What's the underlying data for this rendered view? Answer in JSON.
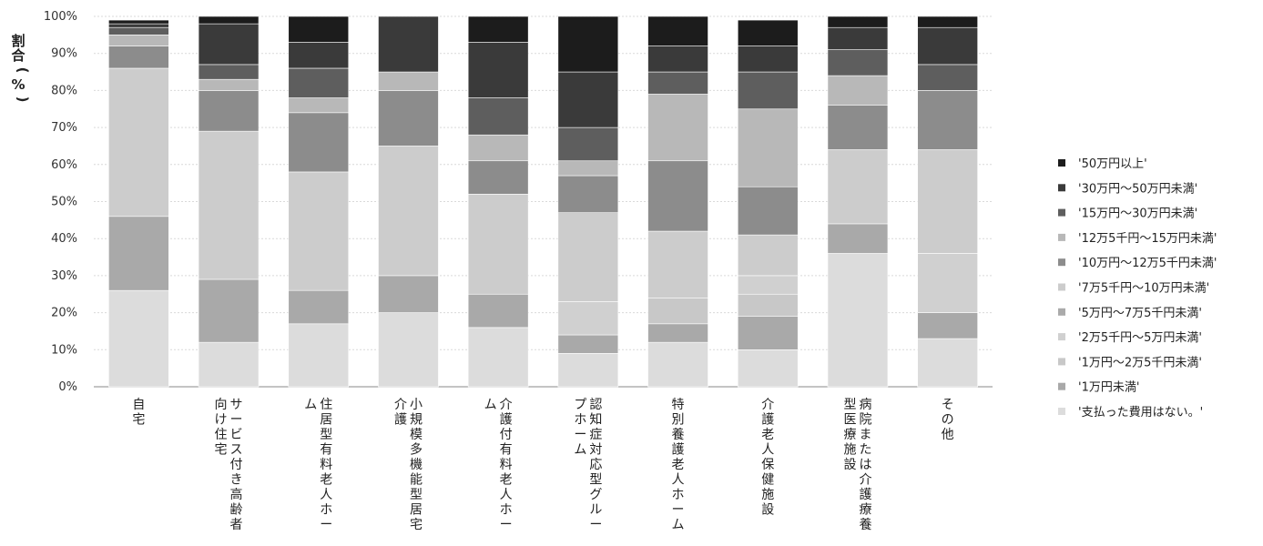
{
  "chart_data": {
    "type": "bar",
    "stacked": true,
    "title": "",
    "xlabel": "",
    "ylabel": "割合(%)",
    "ylim": [
      0,
      100
    ],
    "yticks": [
      "0%",
      "10%",
      "20%",
      "30%",
      "40%",
      "50%",
      "60%",
      "70%",
      "80%",
      "90%",
      "100%"
    ],
    "grid": true,
    "legend_position": "right",
    "categories": [
      "自宅",
      "サービス付き高齢者向け住宅",
      "住居型有料老人ホーム",
      "小規模多機能型居宅介護",
      "介護付有料老人ホーム",
      "認知症対応型グループホーム",
      "特別養護老人ホーム",
      "介護老人保健施設",
      "病院または介護療養型医療施設",
      "その他"
    ],
    "category_lines": [
      [
        "自宅"
      ],
      [
        "サービス付き高齢者",
        "向け住宅"
      ],
      [
        "住居型有料老人ホー",
        "ム"
      ],
      [
        "小規模多機能型居宅",
        "介護"
      ],
      [
        "介護付有料老人ホー",
        "ム"
      ],
      [
        "認知症対応型グルー",
        "プホーム"
      ],
      [
        "特別養護老人ホーム"
      ],
      [
        "介護老人保健施設"
      ],
      [
        "病院または介護療養",
        "型医療施設"
      ],
      [
        "その他"
      ]
    ],
    "series": [
      {
        "name": "'支払った費用はない。'",
        "color": "#dcdcdc",
        "values": [
          26,
          12,
          17,
          20,
          16,
          9,
          12,
          10,
          36,
          13
        ]
      },
      {
        "name": "'1万円未満'",
        "color": "#a9a9a9",
        "values": [
          20,
          17,
          9,
          10,
          9,
          5,
          5,
          9,
          8,
          7
        ]
      },
      {
        "name": "'1万円～2万5千円未満'",
        "color": "#c8c8c8",
        "values": [
          0,
          0,
          0,
          0,
          0,
          0,
          7,
          6,
          0,
          0
        ]
      },
      {
        "name": "'2万5千円～5万円未満'",
        "color": "#d0d0d0",
        "values": [
          0,
          0,
          0,
          0,
          0,
          9,
          0,
          5,
          0,
          16
        ]
      },
      {
        "name": "'5万円～7万5千円未満'",
        "color": "#aaaaaa",
        "values": [
          0,
          0,
          0,
          0,
          0,
          0,
          0,
          0,
          0,
          0
        ]
      },
      {
        "name": "'7万5千円～10万円未満'",
        "color": "#cccccc",
        "values": [
          40,
          40,
          32,
          35,
          27,
          24,
          18,
          11,
          20,
          28
        ]
      },
      {
        "name": "'10万円～12万5千円未満'",
        "color": "#8c8c8c",
        "values": [
          6,
          11,
          16,
          15,
          9,
          10,
          19,
          13,
          12,
          16
        ]
      },
      {
        "name": "'12万5千円～15万円未満'",
        "color": "#b8b8b8",
        "values": [
          3,
          3,
          4,
          5,
          7,
          4,
          18,
          21,
          8,
          0
        ]
      },
      {
        "name": "'15万円～30万円未満'",
        "color": "#5e5e5e",
        "values": [
          2,
          4,
          8,
          0,
          10,
          9,
          6,
          10,
          7,
          7
        ]
      },
      {
        "name": "'30万円～50万円未満'",
        "color": "#3a3a3a",
        "values": [
          1,
          11,
          7,
          15,
          15,
          15,
          7,
          7,
          6,
          10
        ]
      },
      {
        "name": "'50万円以上'",
        "color": "#1c1c1c",
        "values": [
          1,
          2,
          7,
          0,
          7,
          15,
          8,
          7,
          3,
          3
        ]
      }
    ]
  }
}
